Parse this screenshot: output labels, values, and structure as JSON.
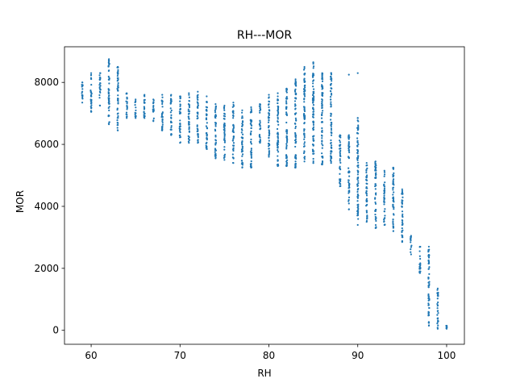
{
  "chart_data": {
    "type": "scatter",
    "title": "RH---MOR",
    "xlabel": "RH",
    "ylabel": "MOR",
    "xlim": [
      57,
      102
    ],
    "ylim": [
      -450,
      9150
    ],
    "xticks": [
      60,
      70,
      80,
      90,
      100
    ],
    "yticks": [
      0,
      2000,
      4000,
      6000,
      8000
    ],
    "grid": false,
    "legend": "none",
    "marker_color": "#1f77b4",
    "series": [
      {
        "clusters": [
          [
            59,
            7350,
            8000
          ],
          [
            60,
            7050,
            8300
          ],
          [
            61,
            7250,
            8300
          ],
          [
            62,
            6650,
            8750
          ],
          [
            63,
            6450,
            8500
          ],
          [
            64,
            6850,
            7650
          ],
          [
            65,
            6850,
            7450
          ],
          [
            66,
            6850,
            7600
          ],
          [
            67,
            6750,
            7450
          ],
          [
            68,
            6450,
            7600
          ],
          [
            69,
            6300,
            7600
          ],
          [
            70,
            6050,
            7550
          ],
          [
            71,
            6050,
            7650
          ],
          [
            72,
            6050,
            7700
          ],
          [
            73,
            5850,
            7550
          ],
          [
            74,
            5550,
            7300
          ],
          [
            75,
            5500,
            7250
          ],
          [
            76,
            5400,
            7350
          ],
          [
            77,
            5250,
            7100
          ],
          [
            78,
            5250,
            7200
          ],
          [
            79,
            6050,
            7300
          ],
          [
            80,
            5650,
            7600
          ],
          [
            81,
            5300,
            7650
          ],
          [
            82,
            5300,
            7800
          ],
          [
            83,
            5250,
            8100
          ],
          [
            84,
            5450,
            8450
          ],
          [
            85,
            5400,
            8650
          ],
          [
            86,
            5350,
            8300
          ],
          [
            87,
            5450,
            8300
          ],
          [
            88,
            4650,
            6300
          ],
          [
            89,
            3900,
            6300
          ],
          [
            90,
            3400,
            6850
          ],
          [
            91,
            3500,
            5400
          ],
          [
            92,
            3300,
            5450
          ],
          [
            93,
            3400,
            5150
          ],
          [
            94,
            3200,
            5250
          ],
          [
            95,
            2850,
            4550
          ],
          [
            96,
            2450,
            3050
          ],
          [
            97,
            1850,
            2700
          ],
          [
            98,
            150,
            2700
          ],
          [
            99,
            50,
            1350
          ],
          [
            100,
            50,
            150
          ]
        ],
        "extra_points": [
          [
            59,
            7700
          ],
          [
            59,
            7900
          ],
          [
            62,
            8700
          ],
          [
            63,
            8500
          ],
          [
            80,
            7200
          ],
          [
            80,
            7300
          ],
          [
            81,
            7550
          ],
          [
            82,
            7750
          ],
          [
            83,
            8050
          ],
          [
            84,
            8250
          ],
          [
            84,
            8500
          ],
          [
            85,
            8600
          ],
          [
            86,
            8200
          ],
          [
            86,
            8250
          ],
          [
            87,
            8300
          ],
          [
            89,
            8250
          ],
          [
            90,
            8300
          ],
          [
            90,
            6850
          ],
          [
            89,
            6200
          ],
          [
            89,
            5800
          ],
          [
            88,
            5750
          ],
          [
            87,
            5600
          ],
          [
            87,
            5400
          ],
          [
            86,
            5350
          ],
          [
            85,
            5400
          ],
          [
            83,
            5450
          ],
          [
            82,
            5350
          ],
          [
            81,
            5500
          ],
          [
            80,
            5600
          ]
        ]
      }
    ]
  }
}
